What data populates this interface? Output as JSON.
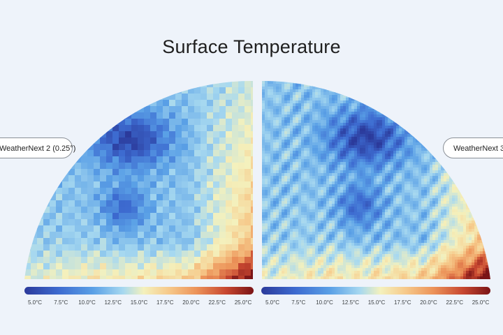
{
  "title": "Surface Temperature",
  "labels": {
    "left": "WeatherNext 2 (0.25°)",
    "right": "WeatherNext 3"
  },
  "colorbar": {
    "ticks": [
      "5.0°C",
      "7.5°C",
      "10.0°C",
      "12.5°C",
      "15.0°C",
      "17.5°C",
      "20.0°C",
      "22.5°C",
      "25.0°C"
    ],
    "colors": [
      "#2b3a9b",
      "#3d6bd0",
      "#5aa0e6",
      "#a6d8f0",
      "#f4f1bd",
      "#f6c98a",
      "#ec9359",
      "#c74730",
      "#7a1416"
    ]
  }
}
